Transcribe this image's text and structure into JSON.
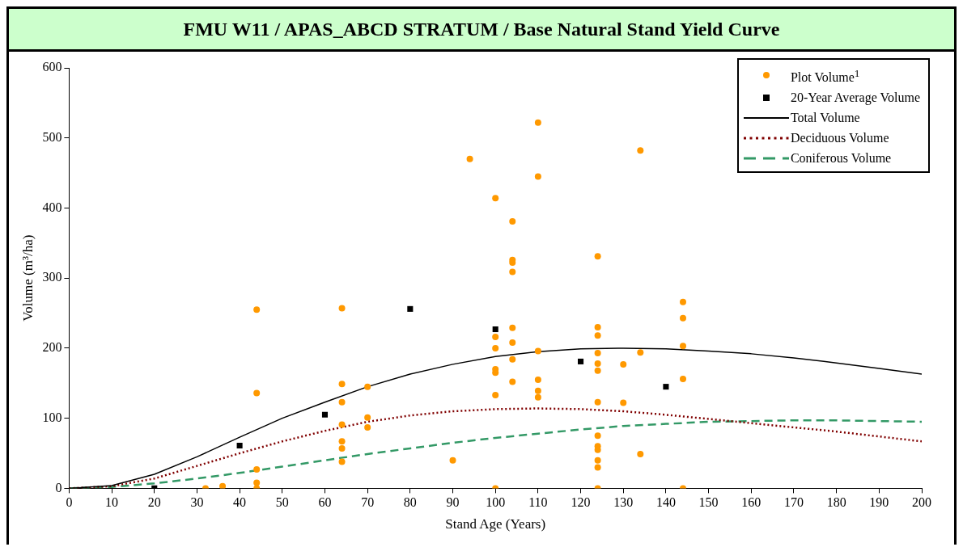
{
  "chart_data": {
    "type": "scatter",
    "title": "FMU W11 / APAS_ABCD STRATUM / Base Natural Stand Yield Curve",
    "xlabel": "Stand Age (Years)",
    "ylabel": "Volume (m³/ha)",
    "xlim": [
      0,
      200
    ],
    "xticks": [
      0,
      10,
      20,
      30,
      40,
      50,
      60,
      70,
      80,
      90,
      100,
      110,
      120,
      130,
      140,
      150,
      160,
      170,
      180,
      190,
      200
    ],
    "ylim": [
      0,
      600
    ],
    "yticks": [
      0,
      100,
      200,
      300,
      400,
      500,
      600
    ],
    "grid": false,
    "legend": "top right",
    "series": [
      {
        "name": "Plot Volume$^{1}$",
        "marker": "circle",
        "color": "#ff9900",
        "x": [
          32,
          36,
          44,
          44,
          44,
          44,
          44,
          64,
          64,
          64,
          64,
          64,
          64,
          64,
          70,
          70,
          70,
          90,
          94,
          100,
          100,
          100,
          100,
          100,
          100,
          100,
          104,
          104,
          104,
          104,
          104,
          104,
          104,
          104,
          110,
          110,
          110,
          110,
          110,
          110,
          124,
          124,
          124,
          124,
          124,
          124,
          124,
          124,
          124,
          124,
          124,
          124,
          124,
          130,
          130,
          134,
          134,
          134,
          144,
          144,
          144,
          144,
          144
        ],
        "values": [
          0,
          3,
          255,
          136,
          27,
          8,
          0,
          257,
          149,
          123,
          91,
          67,
          57,
          38,
          145,
          101,
          87,
          40,
          470,
          414,
          216,
          200,
          170,
          165,
          133,
          0,
          381,
          326,
          322,
          309,
          229,
          208,
          184,
          152,
          522,
          445,
          196,
          155,
          139,
          130,
          331,
          230,
          218,
          193,
          178,
          168,
          123,
          75,
          60,
          55,
          40,
          30,
          0,
          177,
          122,
          482,
          194,
          49,
          266,
          243,
          203,
          156,
          0
        ]
      },
      {
        "name": "20-Year Average Volume",
        "marker": "square",
        "color": "#000000",
        "x": [
          20,
          40,
          60,
          80,
          100,
          120,
          140
        ],
        "values": [
          0,
          61,
          105,
          256,
          227,
          181,
          145
        ]
      },
      {
        "name": "Total Volume",
        "type": "line",
        "line_style": "solid",
        "color": "#000000",
        "x": [
          0,
          10,
          20,
          30,
          40,
          50,
          60,
          70,
          80,
          90,
          100,
          110,
          120,
          130,
          140,
          150,
          160,
          170,
          180,
          190,
          200
        ],
        "values": [
          0,
          4,
          20,
          45,
          73,
          100,
          123,
          145,
          163,
          177,
          188,
          195,
          199,
          200,
          199,
          196,
          192,
          186,
          179,
          171,
          163
        ]
      },
      {
        "name": "Deciduous Volume",
        "type": "line",
        "line_style": "dotted",
        "color": "#800000",
        "x": [
          0,
          10,
          20,
          30,
          40,
          50,
          60,
          70,
          80,
          90,
          100,
          110,
          120,
          130,
          140,
          150,
          160,
          170,
          180,
          190,
          200
        ],
        "values": [
          0,
          3,
          14,
          32,
          50,
          67,
          82,
          95,
          104,
          110,
          113,
          114,
          113,
          110,
          105,
          99,
          93,
          87,
          81,
          74,
          67
        ]
      },
      {
        "name": "Coniferous Volume",
        "type": "line",
        "line_style": "dashed",
        "color": "#339966",
        "x": [
          0,
          10,
          20,
          30,
          40,
          50,
          60,
          70,
          80,
          90,
          100,
          110,
          120,
          130,
          140,
          150,
          160,
          170,
          180,
          190,
          200
        ],
        "values": [
          0,
          2,
          7,
          14,
          22,
          31,
          40,
          49,
          57,
          65,
          72,
          78,
          84,
          89,
          92,
          95,
          96,
          97,
          97,
          96,
          95
        ]
      }
    ]
  }
}
